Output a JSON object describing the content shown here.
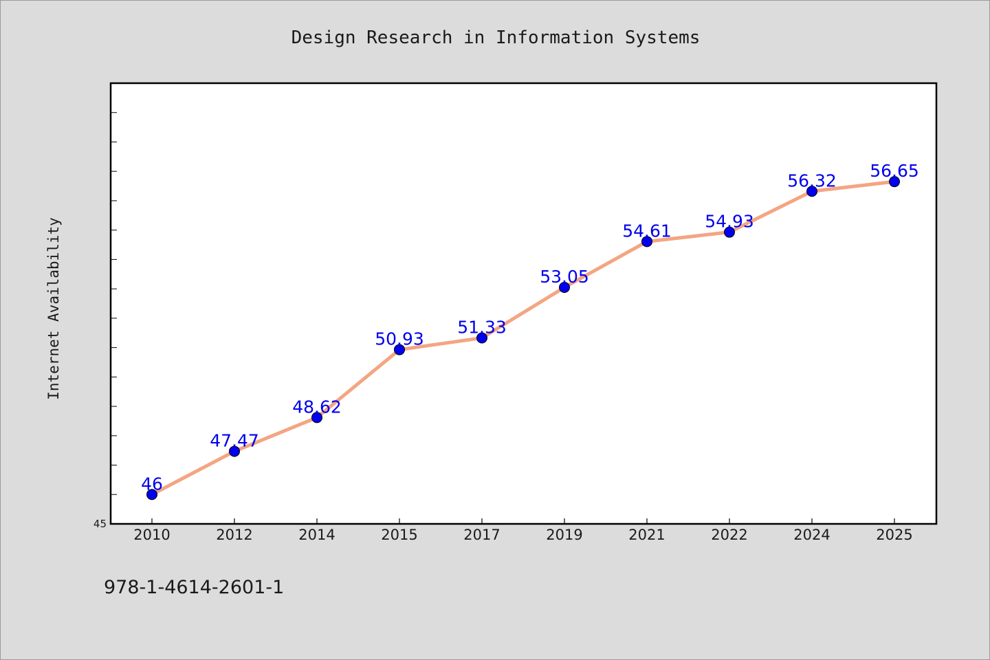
{
  "chart_data": {
    "type": "line",
    "title": "Design Research in Information Systems",
    "xlabel": "",
    "ylabel": "Internet Availability",
    "categories": [
      "2010",
      "2012",
      "2014",
      "2015",
      "2017",
      "2019",
      "2021",
      "2022",
      "2024",
      "2025"
    ],
    "series": [
      {
        "values": [
          46,
          47.47,
          48.62,
          50.93,
          51.33,
          53.05,
          54.61,
          54.93,
          56.32,
          56.65
        ],
        "data_labels": [
          "46",
          "47.47",
          "48.62",
          "50.93",
          "51.33",
          "53.05",
          "54.61",
          "54.93",
          "56.32",
          "56.65"
        ],
        "line_color": "#f4a582",
        "marker_color": "#0000ee"
      }
    ],
    "ylim": [
      45,
      60
    ],
    "ytick_labels": [
      {
        "value": 45,
        "label": "45"
      }
    ],
    "minor_tick_step": 1,
    "grid": false,
    "legend": "none",
    "colors": {
      "background": "#dcdcdc",
      "plot_background": "#ffffff",
      "axis": "#000000",
      "data_label": "#0000ee"
    }
  },
  "footer": {
    "isbn": "978-1-4614-2601-1"
  }
}
